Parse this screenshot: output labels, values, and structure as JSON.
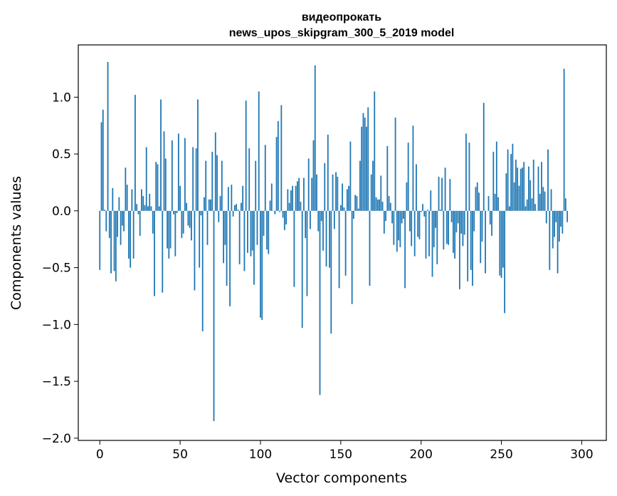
{
  "chart_data": {
    "type": "bar",
    "title_line1": "видеопрокать",
    "title_line2": "news_upos_skipgram_300_5_2019 model",
    "xlabel": "Vector components",
    "ylabel": "Components values",
    "xlim": [
      -13.4,
      315.3
    ],
    "ylim": [
      -2.02,
      1.46
    ],
    "xticks": [
      0,
      50,
      100,
      150,
      200,
      250,
      300
    ],
    "yticks": [
      -2.0,
      -1.5,
      -1.0,
      -0.5,
      0.0,
      0.5,
      1.0
    ],
    "ytick_labels": [
      "−2.0",
      "−1.5",
      "−1.0",
      "−0.5",
      "0.0",
      "0.5",
      "1.0"
    ],
    "bar_color": "#1f77b4",
    "values": [
      -0.52,
      0.78,
      0.89,
      0.01,
      -0.18,
      1.31,
      -0.24,
      -0.55,
      0.2,
      -0.53,
      -0.62,
      -0.23,
      0.12,
      -0.3,
      -0.13,
      -0.18,
      0.38,
      0.23,
      -0.42,
      -0.5,
      0.19,
      -0.42,
      1.02,
      0.06,
      -0.03,
      -0.22,
      0.19,
      0.13,
      0.05,
      0.56,
      0.04,
      0.15,
      0.04,
      -0.2,
      -0.75,
      0.43,
      0.41,
      0.04,
      0.98,
      -0.72,
      0.7,
      0.46,
      -0.33,
      -0.42,
      -0.33,
      0.62,
      -0.03,
      -0.4,
      -0.02,
      0.68,
      0.22,
      -0.24,
      -0.2,
      0.64,
      0.07,
      -0.13,
      -0.15,
      -0.26,
      0.56,
      -0.7,
      0.55,
      0.98,
      -0.5,
      -0.04,
      -1.06,
      0.12,
      0.44,
      -0.3,
      0.1,
      0.1,
      0.52,
      -1.85,
      0.69,
      0.49,
      -0.1,
      0.13,
      0.44,
      -0.46,
      -0.3,
      -0.66,
      0.21,
      -0.84,
      0.23,
      -0.05,
      0.05,
      0.06,
      0.01,
      -0.47,
      0.07,
      0.22,
      -0.53,
      0.97,
      -0.37,
      0.55,
      -0.4,
      -0.35,
      -0.65,
      0.44,
      -0.3,
      1.05,
      -0.94,
      -0.96,
      -0.22,
      0.58,
      -0.34,
      -0.38,
      0.09,
      0.24,
      0.0,
      -0.03,
      0.65,
      0.79,
      -0.01,
      0.93,
      -0.06,
      -0.17,
      -0.12,
      0.19,
      0.07,
      0.18,
      0.22,
      -0.67,
      0.22,
      0.26,
      0.29,
      0.08,
      -1.03,
      0.29,
      -0.24,
      -0.75,
      0.46,
      -0.16,
      0.29,
      0.62,
      1.28,
      0.32,
      -0.18,
      -1.62,
      -0.09,
      -0.35,
      0.42,
      -0.49,
      0.67,
      -0.5,
      -1.08,
      0.32,
      -0.16,
      0.34,
      0.3,
      -0.68,
      0.05,
      0.24,
      0.03,
      -0.57,
      0.19,
      0.22,
      0.61,
      -0.82,
      -0.07,
      0.14,
      0.13,
      0.02,
      0.44,
      0.74,
      0.86,
      0.82,
      0.74,
      0.91,
      -0.66,
      0.32,
      0.44,
      1.05,
      0.12,
      0.1,
      0.1,
      0.31,
      0.08,
      -0.2,
      -0.09,
      0.57,
      0.13,
      0.07,
      -0.11,
      -0.3,
      0.82,
      -0.36,
      -0.26,
      -0.32,
      -0.11,
      -0.07,
      -0.68,
      0.25,
      0.6,
      -0.18,
      -0.31,
      0.75,
      -0.4,
      0.41,
      -0.23,
      -0.25,
      -0.01,
      0.06,
      -0.05,
      -0.42,
      0.01,
      -0.4,
      0.18,
      -0.58,
      -0.32,
      -0.15,
      -0.47,
      0.3,
      0.01,
      0.29,
      -0.34,
      0.38,
      -0.29,
      -0.3,
      0.28,
      -0.1,
      -0.37,
      -0.42,
      -0.19,
      -0.11,
      -0.69,
      -0.2,
      -0.31,
      -0.21,
      0.68,
      -0.62,
      0.6,
      -0.52,
      -0.66,
      -0.18,
      0.21,
      0.25,
      0.16,
      -0.46,
      -0.27,
      0.95,
      -0.55,
      0.0,
      0.13,
      -0.12,
      -0.22,
      0.52,
      0.15,
      0.61,
      0.12,
      -0.57,
      -0.59,
      -0.5,
      -0.9,
      0.33,
      0.54,
      0.04,
      0.5,
      0.59,
      0.25,
      0.45,
      0.38,
      0.22,
      0.37,
      0.38,
      0.43,
      0.04,
      0.1,
      0.39,
      0.27,
      0.11,
      0.45,
      0.06,
      0.0,
      0.39,
      0.15,
      0.43,
      0.21,
      0.17,
      -0.11,
      0.54,
      -0.52,
      0.19,
      -0.33,
      -0.23,
      -0.1,
      -0.55,
      -0.27,
      -0.14,
      -0.2,
      1.25,
      0.11,
      -0.1
    ],
    "grid": false,
    "legend": "none"
  }
}
